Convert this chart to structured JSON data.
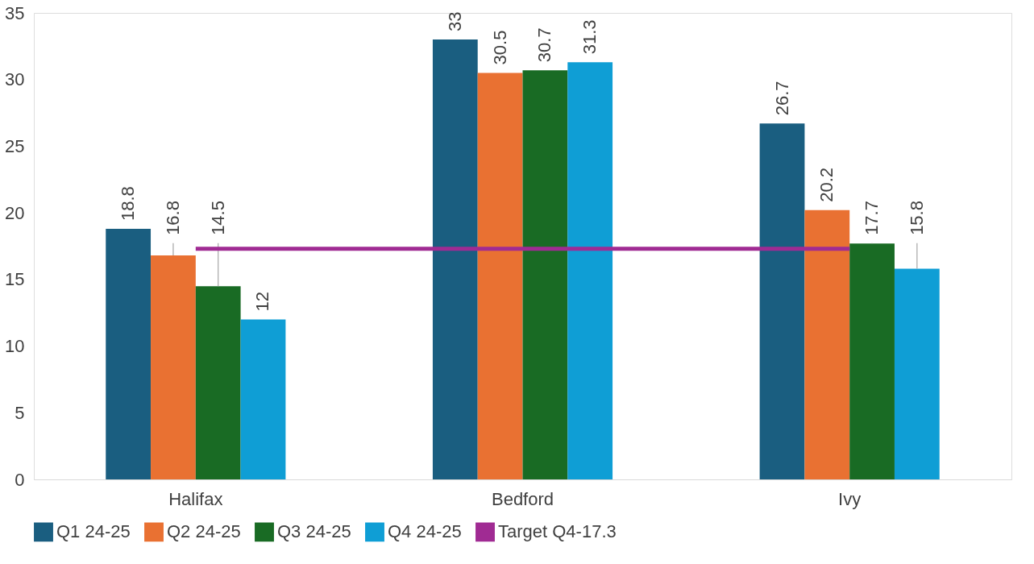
{
  "chart_data": {
    "type": "bar",
    "categories": [
      "Halifax",
      "Bedford",
      "Ivy"
    ],
    "series": [
      {
        "name": "Q1 24-25",
        "color": "#1a5e80",
        "values": [
          18.8,
          33,
          26.7
        ],
        "value_labels": [
          "18.8",
          "33",
          "26.7"
        ]
      },
      {
        "name": "Q2 24-25",
        "color": "#e97132",
        "values": [
          16.8,
          30.5,
          20.2
        ],
        "value_labels": [
          "16.8",
          "30.5",
          "20.2"
        ]
      },
      {
        "name": "Q3 24-25",
        "color": "#196b24",
        "values": [
          14.5,
          30.7,
          17.7
        ],
        "value_labels": [
          "14.5",
          "30.7",
          "17.7"
        ]
      },
      {
        "name": "Q4 24-25",
        "color": "#0f9ed5",
        "values": [
          12,
          31.3,
          15.8
        ],
        "value_labels": [
          "12",
          "31.3",
          "15.8"
        ]
      },
      {
        "name": "Target Q4-17.3",
        "color": "#a02b93",
        "type": "line",
        "values": [
          17.3,
          17.3,
          17.3
        ]
      }
    ],
    "ylim": [
      0,
      35
    ],
    "yticks": [
      0,
      5,
      10,
      15,
      20,
      25,
      30,
      35
    ],
    "grid": false,
    "legend": "bottom",
    "marker": "none"
  }
}
